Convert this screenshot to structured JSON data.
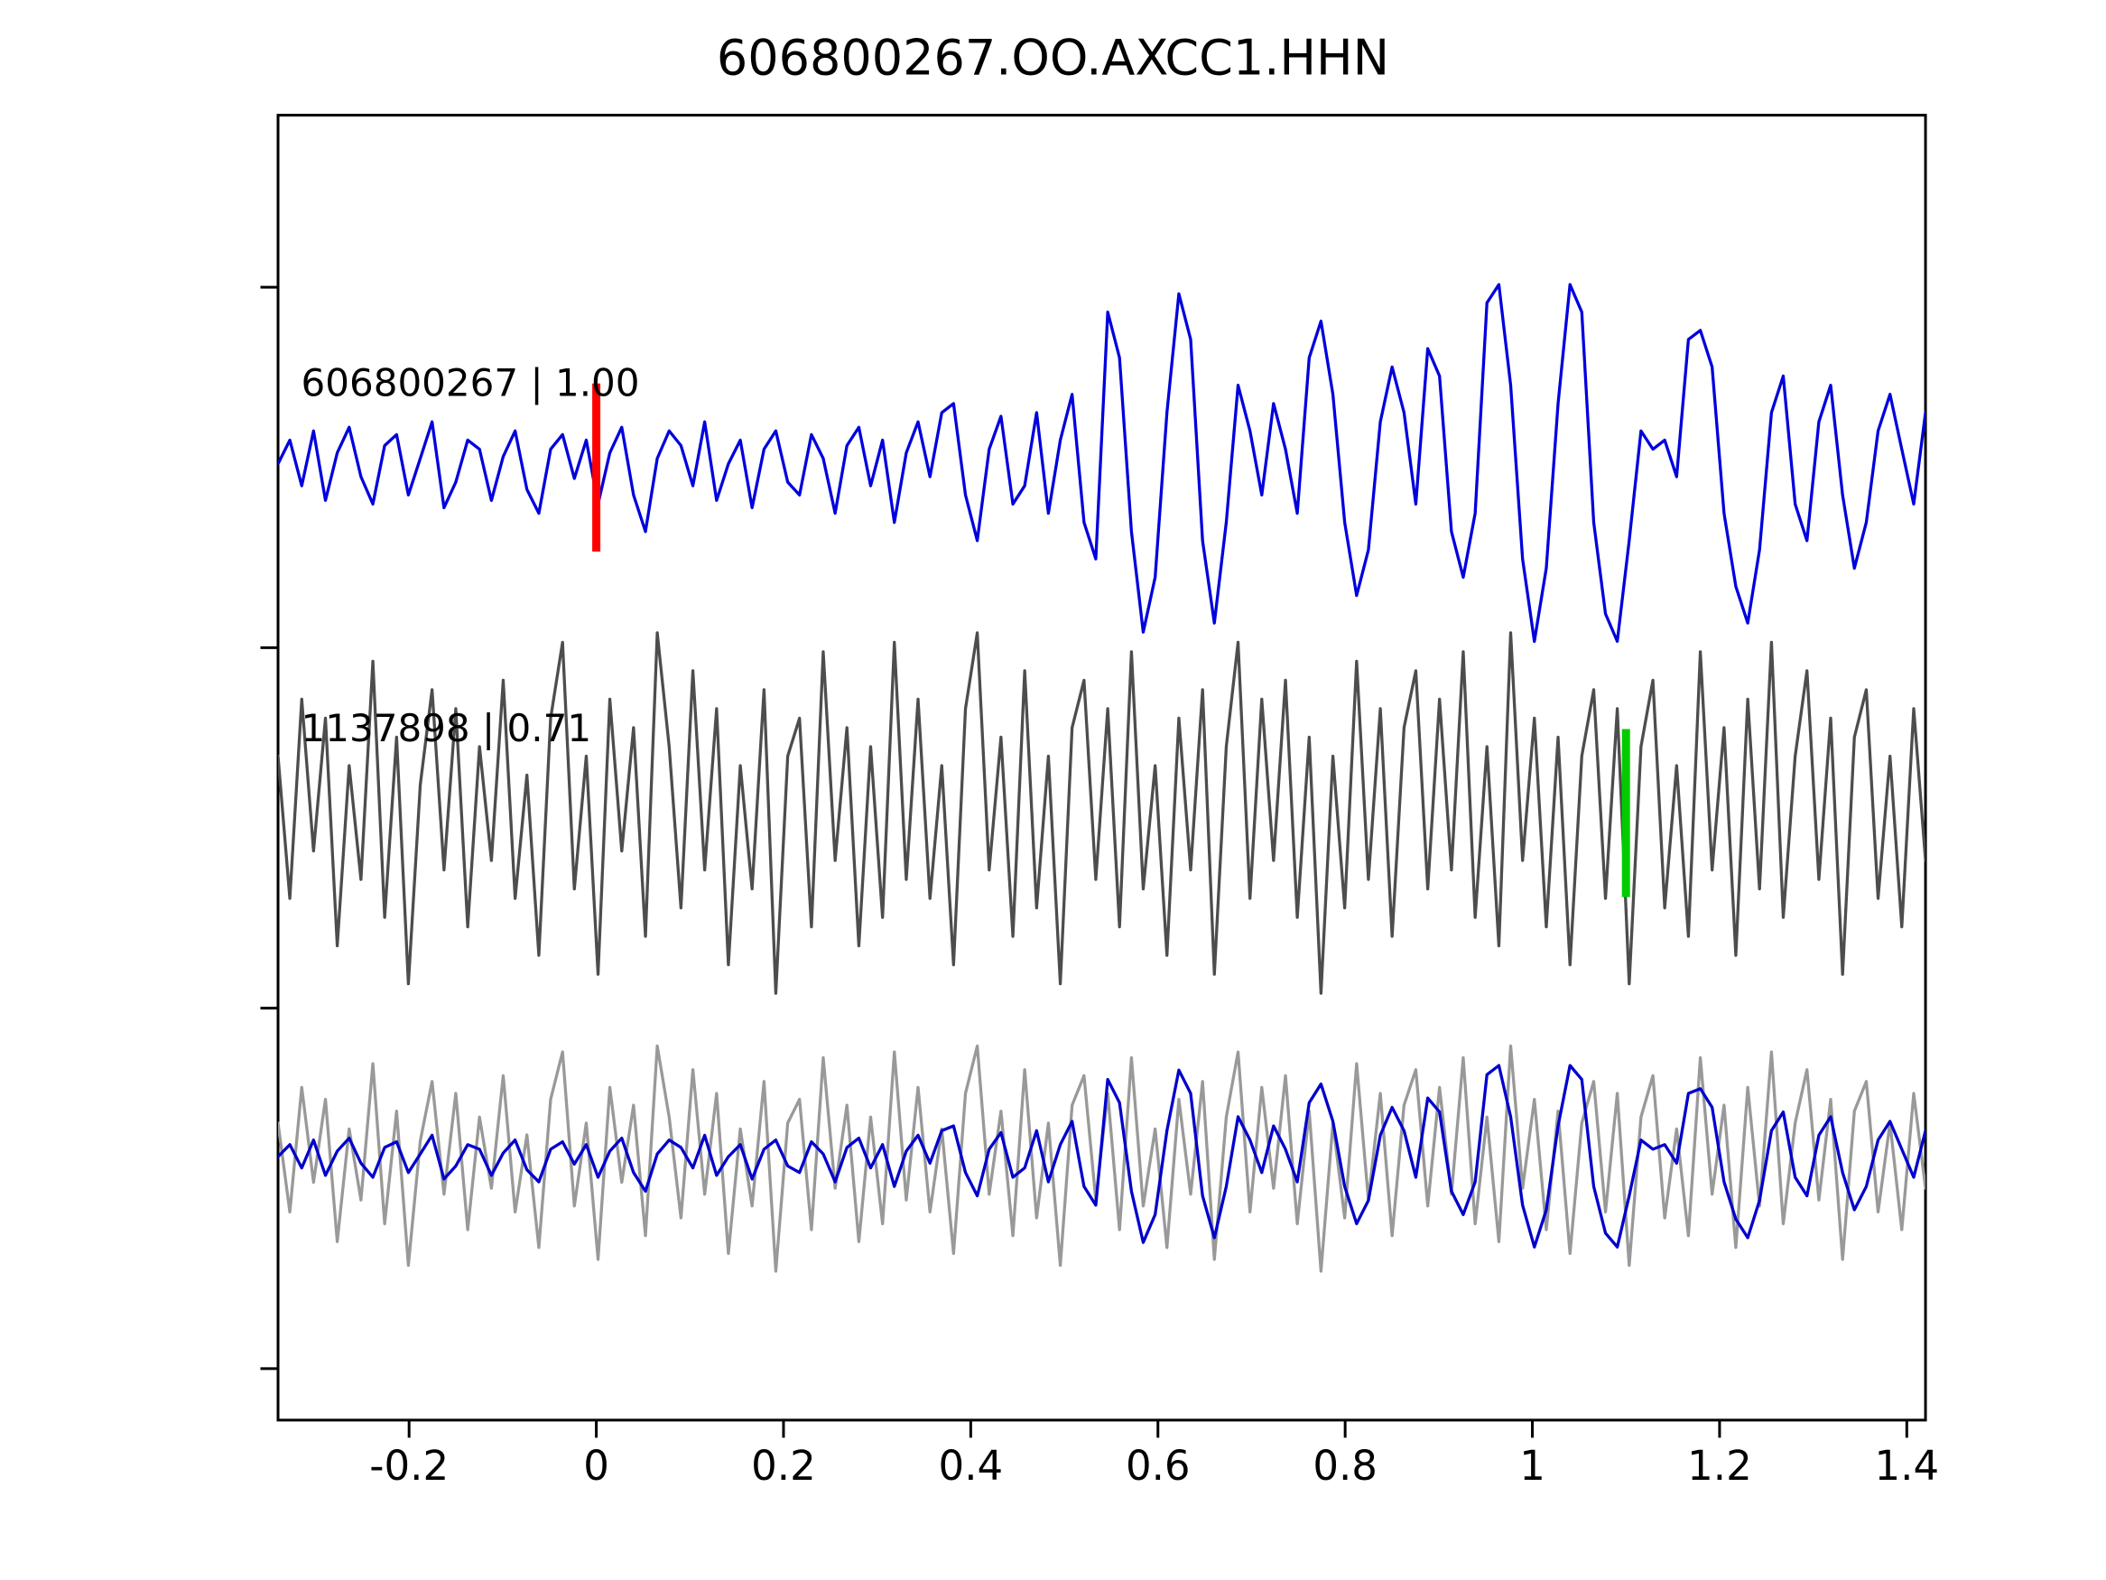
{
  "page": {
    "title": "606800267.OO.AXCC1.HHN"
  },
  "chart_data": {
    "type": "line",
    "title": "606800267.OO.AXCC1.HHN",
    "xlabel": "",
    "ylabel": "",
    "grid": false,
    "legend": "none",
    "x_range": [
      -0.34,
      1.42
    ],
    "x_ticks": [
      -0.2,
      0,
      0.2,
      0.4,
      0.6,
      0.8,
      1,
      1.2,
      1.4
    ],
    "x_tick_labels": [
      "-0.2",
      "0",
      "0.2",
      "0.4",
      "0.6",
      "0.8",
      "1",
      "1.2",
      "1.4"
    ],
    "traces": [
      {
        "name": "detection-trace",
        "label": "606800267 | 1.00",
        "color": "#0000dd",
        "row": 0,
        "values": [
          0.02,
          0.15,
          -0.1,
          0.2,
          -0.18,
          0.08,
          0.22,
          -0.05,
          -0.2,
          0.12,
          0.18,
          -0.15,
          0.05,
          0.25,
          -0.22,
          -0.08,
          0.15,
          0.1,
          -0.18,
          0.06,
          0.2,
          -0.12,
          -0.25,
          0.1,
          0.18,
          -0.06,
          0.15,
          -0.2,
          0.08,
          0.22,
          -0.15,
          -0.35,
          0.05,
          0.2,
          0.12,
          -0.1,
          0.25,
          -0.18,
          0.02,
          0.15,
          -0.22,
          0.1,
          0.2,
          -0.08,
          -0.15,
          0.18,
          0.05,
          -0.25,
          0.12,
          0.22,
          -0.1,
          0.15,
          -0.3,
          0.08,
          0.25,
          -0.05,
          0.3,
          0.35,
          -0.15,
          -0.4,
          0.1,
          0.28,
          -0.2,
          -0.1,
          0.3,
          -0.25,
          0.15,
          0.4,
          -0.3,
          -0.5,
          0.85,
          0.6,
          -0.35,
          -0.9,
          -0.6,
          0.3,
          0.95,
          0.7,
          -0.4,
          -0.85,
          -0.3,
          0.45,
          0.2,
          -0.15,
          0.35,
          0.1,
          -0.25,
          0.6,
          0.8,
          0.4,
          -0.3,
          -0.7,
          -0.45,
          0.25,
          0.55,
          0.3,
          -0.2,
          0.65,
          0.5,
          -0.35,
          -0.6,
          -0.25,
          0.9,
          1.0,
          0.45,
          -0.5,
          -0.95,
          -0.55,
          0.35,
          1.0,
          0.85,
          -0.3,
          -0.8,
          -0.95,
          -0.4,
          0.2,
          0.1,
          0.15,
          -0.05,
          0.7,
          0.75,
          0.55,
          -0.25,
          -0.65,
          -0.85,
          -0.45,
          0.3,
          0.5,
          -0.2,
          -0.4,
          0.25,
          0.45,
          -0.15,
          -0.55,
          -0.3,
          0.2,
          0.4,
          0.1,
          -0.2,
          0.3
        ]
      },
      {
        "name": "template-trace",
        "label": "1137898 | 0.71",
        "color": "#4d4d4d",
        "row": 1,
        "values": [
          0.3,
          -0.45,
          0.6,
          -0.2,
          0.5,
          -0.7,
          0.25,
          -0.35,
          0.8,
          -0.55,
          0.4,
          -0.9,
          0.15,
          0.65,
          -0.3,
          0.55,
          -0.6,
          0.35,
          -0.25,
          0.7,
          -0.45,
          0.2,
          -0.75,
          0.5,
          0.9,
          -0.4,
          0.3,
          -0.85,
          0.6,
          -0.2,
          0.45,
          -0.65,
          0.95,
          0.35,
          -0.5,
          0.75,
          -0.3,
          0.55,
          -0.8,
          0.25,
          -0.4,
          0.65,
          -0.95,
          0.3,
          0.5,
          -0.6,
          0.85,
          -0.25,
          0.45,
          -0.7,
          0.35,
          -0.55,
          0.9,
          -0.35,
          0.6,
          -0.45,
          0.25,
          -0.8,
          0.55,
          0.95,
          -0.3,
          0.4,
          -0.65,
          0.75,
          -0.5,
          0.3,
          -0.9,
          0.45,
          0.7,
          -0.35,
          0.55,
          -0.6,
          0.85,
          -0.4,
          0.25,
          -0.75,
          0.5,
          -0.3,
          0.65,
          -0.85,
          0.35,
          0.9,
          -0.45,
          0.6,
          -0.25,
          0.7,
          -0.55,
          0.4,
          -0.95,
          0.3,
          -0.5,
          0.8,
          -0.35,
          0.55,
          -0.65,
          0.45,
          0.75,
          -0.4,
          0.6,
          -0.3,
          0.85,
          -0.55,
          0.35,
          -0.7,
          0.95,
          -0.25,
          0.5,
          -0.6,
          0.4,
          -0.8,
          0.3,
          0.65,
          -0.45,
          0.55,
          -0.9,
          0.35,
          0.7,
          -0.5,
          0.25,
          -0.65,
          0.85,
          -0.3,
          0.45,
          -0.75,
          0.6,
          -0.4,
          0.9,
          -0.55,
          0.3,
          0.75,
          -0.35,
          0.5,
          -0.85,
          0.4,
          0.65,
          -0.45,
          0.3,
          -0.6,
          0.55,
          -0.25
        ]
      },
      {
        "name": "overlay-template-trace",
        "label": "",
        "color": "#999999",
        "row": 2,
        "amplitude_scale": 0.7,
        "values_ref": 1
      },
      {
        "name": "overlay-detection-trace",
        "label": "",
        "color": "#0000cc",
        "row": 2,
        "amplitude_scale": 0.55,
        "values_ref": 0
      }
    ],
    "markers": [
      {
        "name": "pick-marker-detection",
        "x": 0.0,
        "row": 0,
        "color": "#ff0000"
      },
      {
        "name": "pick-marker-template",
        "x": 1.1,
        "row": 1,
        "color": "#00cc00"
      }
    ]
  }
}
